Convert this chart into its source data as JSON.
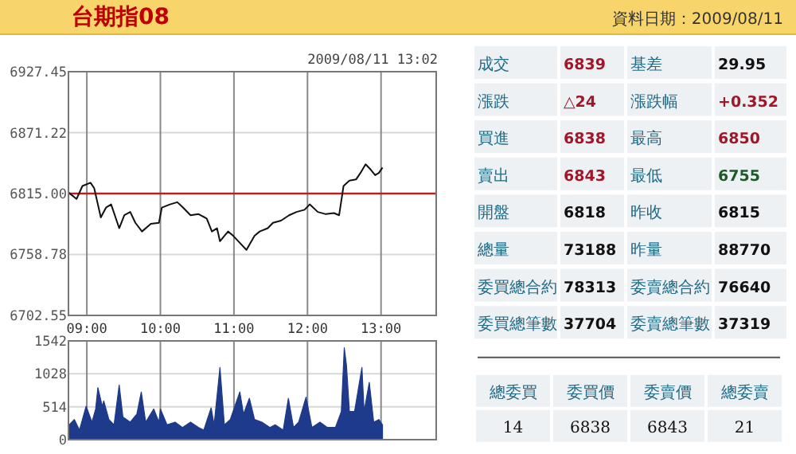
{
  "chart_data": [
    {
      "type": "line",
      "title": "台期指08",
      "annotations": [
        "2009/08/11 13:02"
      ],
      "color": "#111111",
      "grid": true,
      "x": [
        8.75,
        8.86,
        8.94,
        9.05,
        9.1,
        9.19,
        9.26,
        9.33,
        9.44,
        9.51,
        9.59,
        9.66,
        9.75,
        9.87,
        9.98,
        10.02,
        10.13,
        10.23,
        10.31,
        10.41,
        10.52,
        10.63,
        10.7,
        10.77,
        10.81,
        10.92,
        10.99,
        11.1,
        11.17,
        11.28,
        11.35,
        11.46,
        11.53,
        11.64,
        11.75,
        11.85,
        11.96,
        12.03,
        12.14,
        12.25,
        12.36,
        12.43,
        12.49,
        12.57,
        12.66,
        12.72,
        12.79,
        12.86,
        12.92,
        12.97,
        13.02
      ],
      "values": [
        6816,
        6810,
        6822,
        6825,
        6820,
        6793,
        6802,
        6805,
        6783,
        6795,
        6798,
        6788,
        6780,
        6787,
        6788,
        6802,
        6805,
        6807,
        6802,
        6795,
        6796,
        6792,
        6780,
        6783,
        6771,
        6780,
        6776,
        6768,
        6763,
        6776,
        6780,
        6783,
        6788,
        6790,
        6795,
        6798,
        6800,
        6805,
        6798,
        6796,
        6797,
        6795,
        6822,
        6827,
        6828,
        6834,
        6842,
        6837,
        6832,
        6834,
        6839
      ],
      "xlim": [
        8.75,
        13.75
      ],
      "ylim": [
        6702.55,
        6927.45
      ],
      "xticks": [
        {
          "value": 9,
          "label": "09:00"
        },
        {
          "value": 10,
          "label": "10:00"
        },
        {
          "value": 11,
          "label": "11:00"
        },
        {
          "value": 12,
          "label": "12:00"
        },
        {
          "value": 13,
          "label": "13:00"
        }
      ],
      "yticks": [
        6702.55,
        6758.78,
        {
          "value": 6815,
          "label": "6815.00"
        },
        6871.22,
        6927.45
      ],
      "ref_lines": [
        {
          "axis": "y",
          "value": 6815,
          "color": "#b22222"
        }
      ]
    },
    {
      "type": "area",
      "color": "#1e3a8a",
      "grid": true,
      "tick_labels": "y",
      "x": [
        8.76,
        8.83,
        8.9,
        8.99,
        9.07,
        9.12,
        9.15,
        9.21,
        9.23,
        9.3,
        9.37,
        9.44,
        9.49,
        9.59,
        9.68,
        9.74,
        9.8,
        9.91,
        9.98,
        10.0,
        10.09,
        10.2,
        10.3,
        10.41,
        10.52,
        10.59,
        10.69,
        10.73,
        10.81,
        10.87,
        10.95,
        11.08,
        11.13,
        11.21,
        11.28,
        11.38,
        11.49,
        11.56,
        11.67,
        11.74,
        11.81,
        11.88,
        11.98,
        12.06,
        12.17,
        12.27,
        12.38,
        12.46,
        12.5,
        12.53,
        12.57,
        12.64,
        12.74,
        12.77,
        12.84,
        12.9,
        12.97,
        13.02
      ],
      "values": [
        232,
        315,
        150,
        522,
        274,
        480,
        812,
        520,
        605,
        315,
        232,
        854,
        356,
        274,
        400,
        746,
        274,
        480,
        274,
        480,
        232,
        274,
        190,
        274,
        190,
        150,
        497,
        232,
        1127,
        232,
        315,
        746,
        400,
        646,
        315,
        274,
        190,
        232,
        150,
        646,
        190,
        274,
        663,
        190,
        274,
        190,
        190,
        440,
        1434,
        1160,
        440,
        440,
        1127,
        440,
        895,
        274,
        315,
        232
      ],
      "xlim": [
        8.75,
        13.75
      ],
      "ylim": [
        0,
        1542
      ],
      "xticks": [
        {
          "value": 9,
          "label": null
        },
        {
          "value": 10,
          "label": null
        },
        {
          "value": 11,
          "label": null
        },
        {
          "value": 12,
          "label": null
        },
        {
          "value": 13,
          "label": null
        }
      ],
      "yticks": [
        0,
        514,
        1028,
        1542
      ]
    },
    {
      "type": "other",
      "title": "資料日期：2009/08/11",
      "annotations": [
        "成交",
        "6839",
        "基差",
        "29.95",
        "漲跌",
        "△24",
        "漲跌幅",
        "+0.352",
        "買進",
        "6838",
        "最高",
        "6850",
        "賣出",
        "6843",
        "最低",
        "6755",
        "開盤",
        "6818",
        "昨收",
        "6815",
        "總量",
        "73188",
        "昨量",
        "88770",
        "委買總合約",
        "78313",
        "委賣總合約",
        "76640",
        "委買總筆數",
        "37704",
        "委賣總筆數",
        "37319",
        "總委買",
        "委買價",
        "委賣價",
        "總委賣",
        "14",
        "6838",
        "6843",
        "21"
      ]
    }
  ]
}
